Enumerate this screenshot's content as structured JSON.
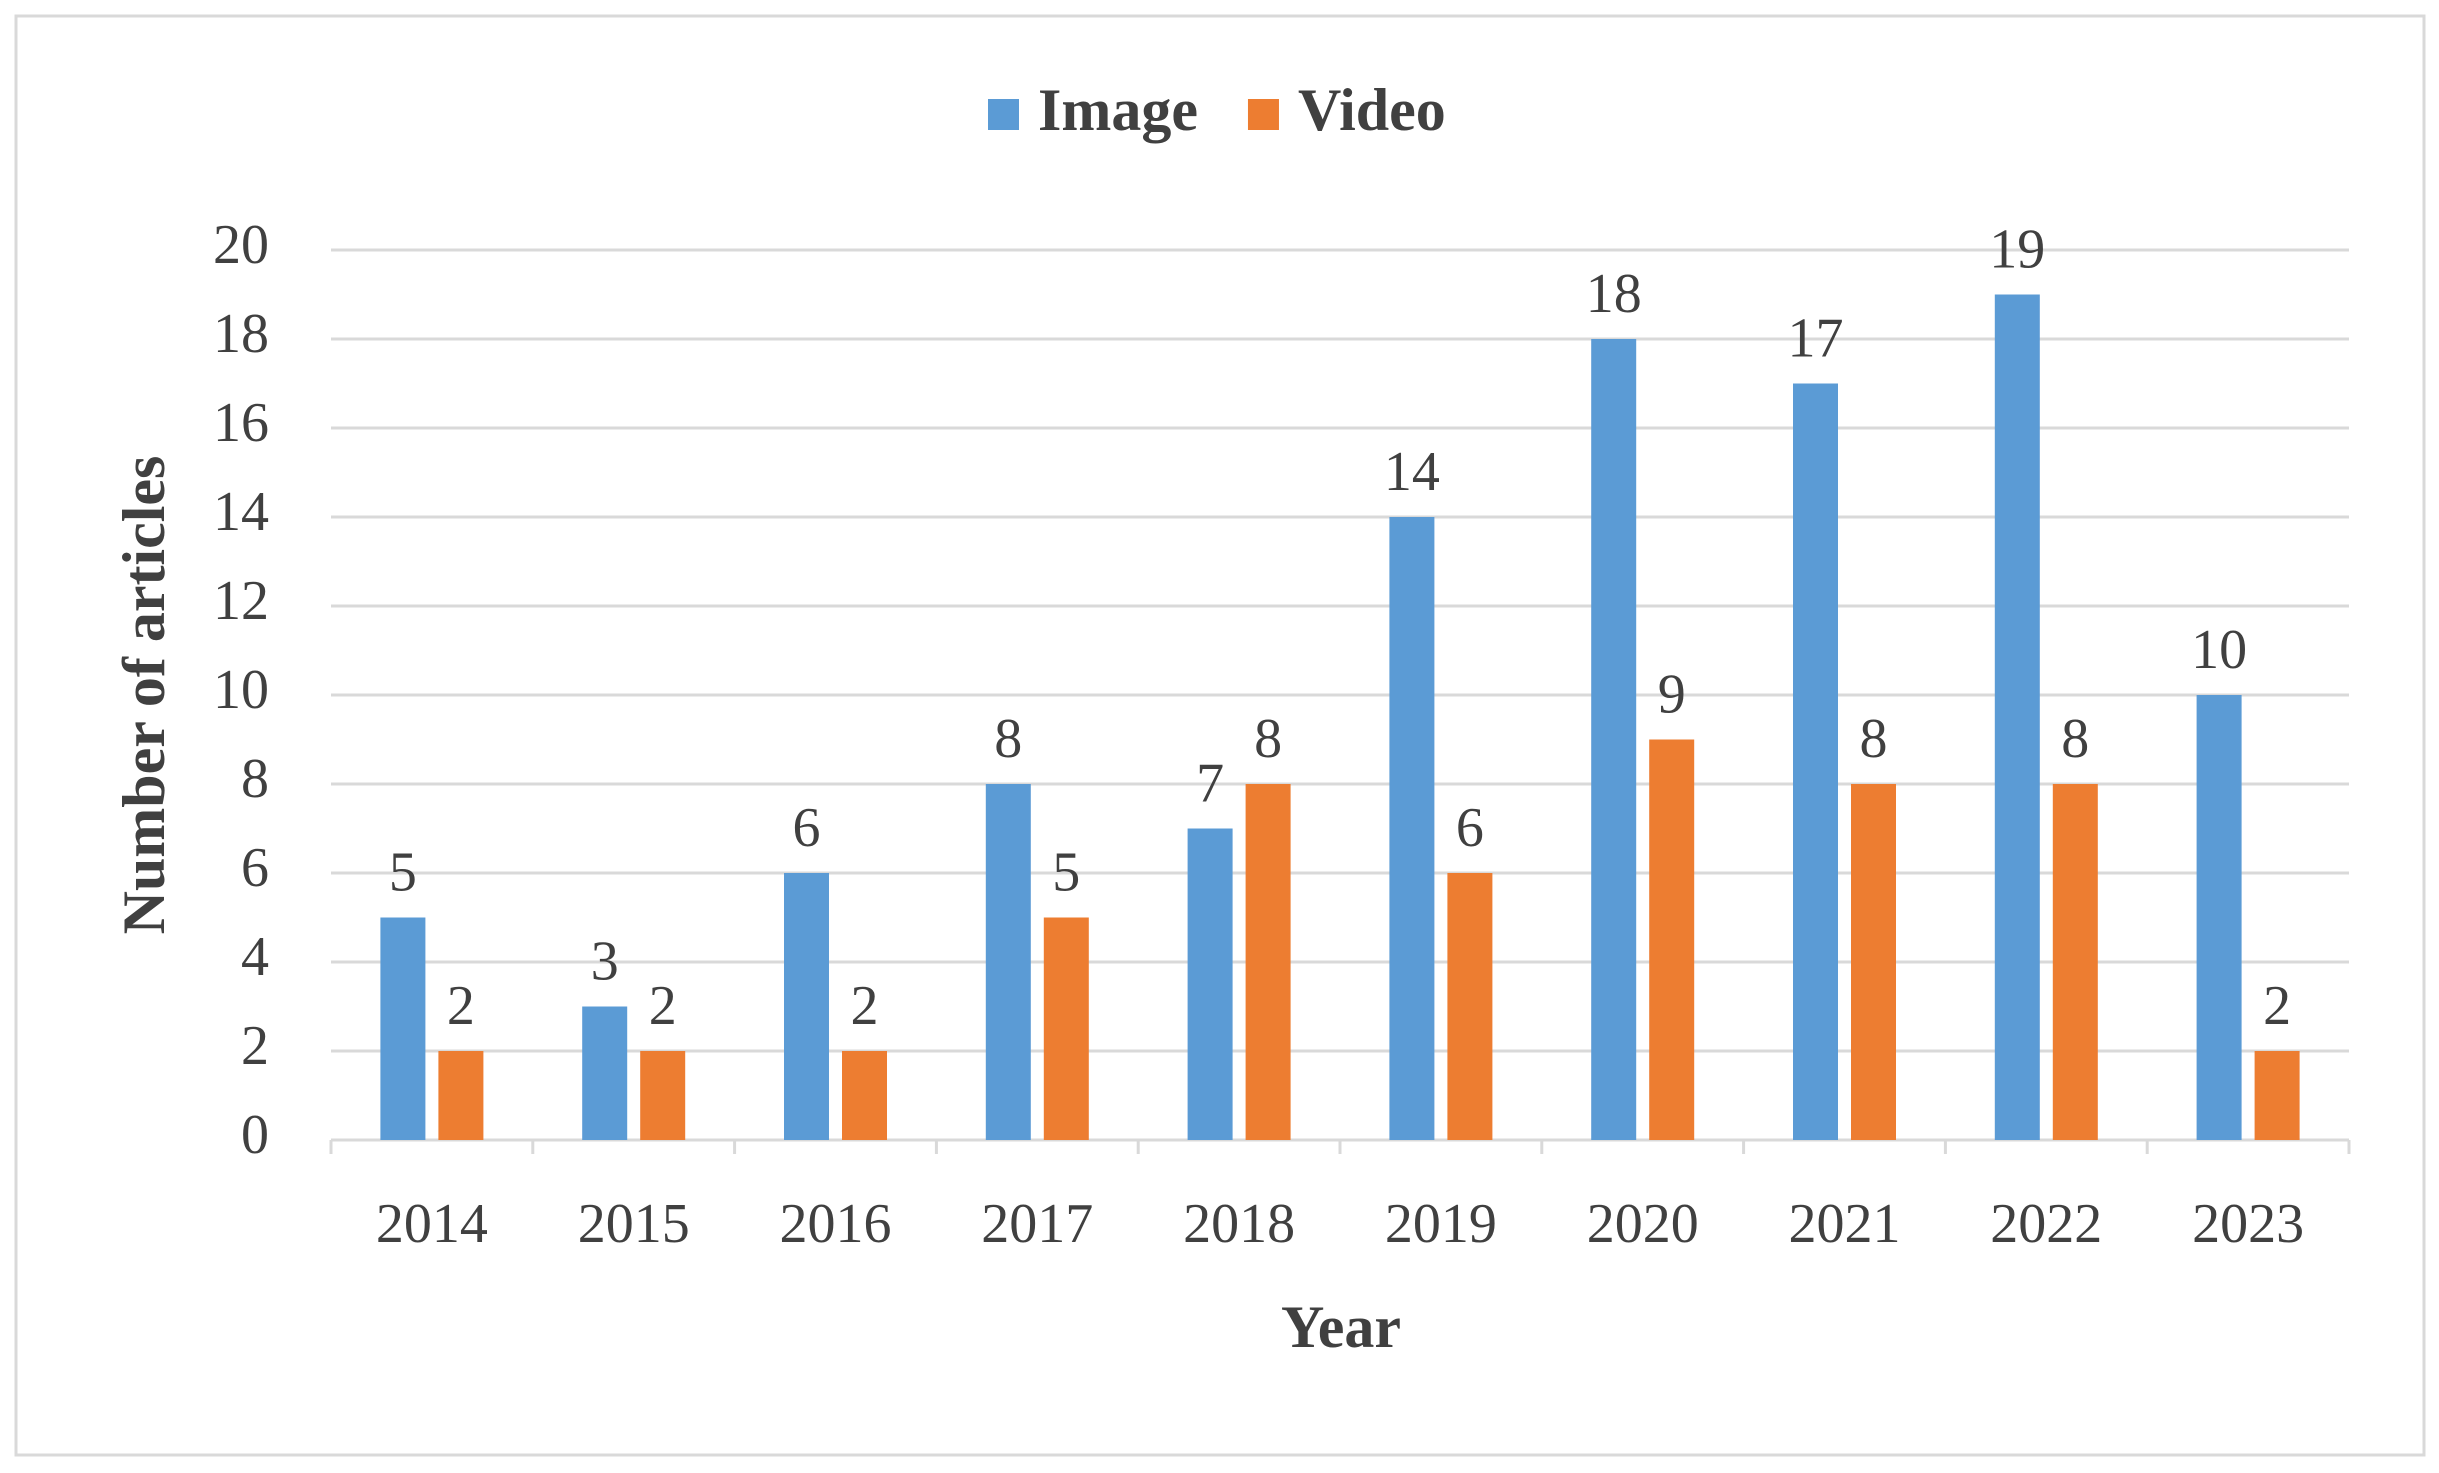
{
  "chart_data": {
    "type": "bar",
    "x_label": "Year",
    "y_label": "Number of articles",
    "categories": [
      "2014",
      "2015",
      "2016",
      "2017",
      "2018",
      "2019",
      "2020",
      "2021",
      "2022",
      "2023"
    ],
    "series": [
      {
        "name": "Image",
        "color": "#5b9bd5",
        "values": [
          5,
          3,
          6,
          8,
          7,
          14,
          18,
          17,
          19,
          10
        ]
      },
      {
        "name": "Video",
        "color": "#ed7d31",
        "values": [
          2,
          2,
          2,
          5,
          8,
          6,
          9,
          8,
          8,
          2
        ]
      }
    ],
    "ylim": [
      0,
      20
    ],
    "yticks": [
      0,
      2,
      4,
      6,
      8,
      10,
      12,
      14,
      16,
      18,
      20
    ],
    "grid": true,
    "legend": "top",
    "data_labels": true
  }
}
